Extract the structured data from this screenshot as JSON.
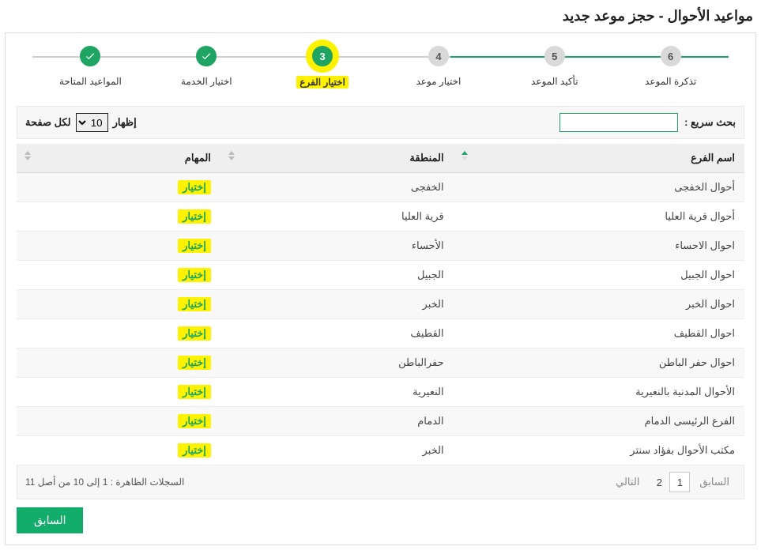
{
  "page_title": "مواعيد الأحوال - حجز موعد جديد",
  "accent_color": "#1fa463",
  "highlight_color": "#fff200",
  "stepper": {
    "current_index": 2,
    "steps": [
      {
        "label": "المواعيد المتاحة",
        "state": "completed"
      },
      {
        "label": "اختيار الخدمة",
        "state": "completed"
      },
      {
        "label": "اختيار الفرع",
        "state": "current",
        "number": "3"
      },
      {
        "label": "اختيار موعد",
        "state": "upcoming",
        "number": "4"
      },
      {
        "label": "تأكيد الموعد",
        "state": "upcoming",
        "number": "5"
      },
      {
        "label": "تذكرة الموعد",
        "state": "upcoming",
        "number": "6"
      }
    ]
  },
  "toolbar": {
    "search_label": "بحث سريع :",
    "search_value": "",
    "length_prefix": "إظهار",
    "length_suffix": "لكل صفحة",
    "length_value": "10"
  },
  "table": {
    "columns": {
      "branch": "اسم الفرع",
      "region": "المنطقة",
      "action": "المهام"
    },
    "action_label": "إختيار",
    "rows": [
      {
        "branch": "أحوال الخفجى",
        "region": "الخفجى"
      },
      {
        "branch": "أحوال قرية العليا",
        "region": "قرية العليا"
      },
      {
        "branch": "احوال الاحساء",
        "region": "الأحساء"
      },
      {
        "branch": "احوال الجبيل",
        "region": "الجبيل"
      },
      {
        "branch": "احوال الخبر",
        "region": "الخبر"
      },
      {
        "branch": "احوال القطيف",
        "region": "القطيف"
      },
      {
        "branch": "احوال حفر الباطن",
        "region": "حفرالباطن"
      },
      {
        "branch": "الأحوال المدنية بالنعيرية",
        "region": "النعيرية"
      },
      {
        "branch": "الفرع الرئيسى الدمام",
        "region": "الدمام"
      },
      {
        "branch": "مكتب الأحوال بفؤاد سنتر",
        "region": "الخبر"
      }
    ]
  },
  "pagination": {
    "prev_label": "السابق",
    "next_label": "التالي",
    "pages": [
      "1",
      "2"
    ],
    "current_page": "1",
    "info_text": "السجلات الظاهرة : 1 إلى 10 من أصل 11"
  },
  "buttons": {
    "back": "السابق"
  }
}
